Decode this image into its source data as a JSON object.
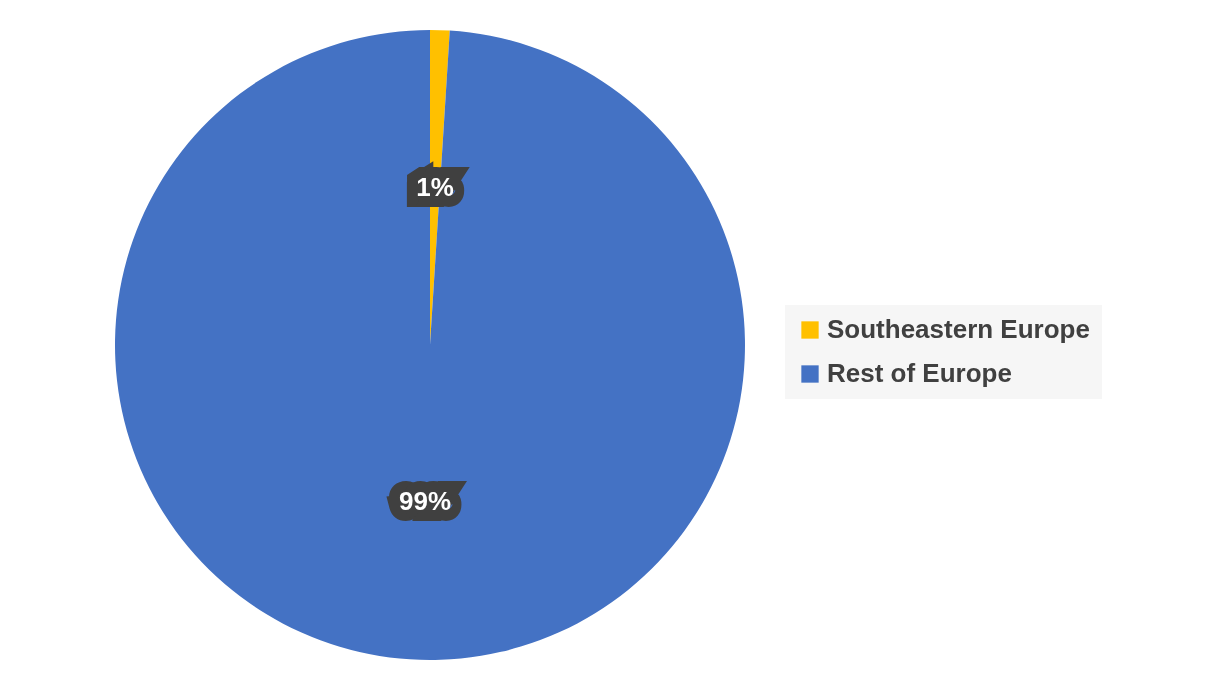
{
  "chart_data": {
    "type": "pie",
    "categories": [
      "Southeastern Europe",
      "Rest of Europe"
    ],
    "values": [
      1,
      99
    ],
    "value_labels": [
      "1%",
      "99%"
    ],
    "colors": [
      "#ffc000",
      "#4472c4"
    ],
    "legend": "right"
  }
}
